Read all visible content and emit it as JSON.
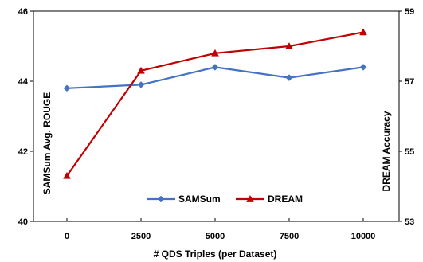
{
  "chart_data": {
    "type": "line",
    "xlabel": "# QDS Triples (per Dataset)",
    "x": [
      0,
      2500,
      5000,
      7500,
      10000
    ],
    "x_tick_labels": [
      "0",
      "2500",
      "5000",
      "7500",
      "10000"
    ],
    "y_left": {
      "label": "SAMSum Avg. ROUGE",
      "lim": [
        40,
        46
      ],
      "ticks": [
        40,
        42,
        44,
        46
      ],
      "tick_labels": [
        "40",
        "42",
        "44",
        "46"
      ]
    },
    "y_right": {
      "label": "DREAM Accuracy",
      "lim": [
        53,
        59
      ],
      "ticks": [
        53,
        55,
        57,
        59
      ],
      "tick_labels": [
        "53",
        "55",
        "57",
        "59"
      ]
    },
    "series": [
      {
        "name": "SAMSum",
        "axis": "left",
        "values": [
          43.8,
          43.9,
          44.4,
          44.1,
          44.4
        ],
        "color": "#4472C4",
        "marker": "diamond"
      },
      {
        "name": "DREAM",
        "axis": "right",
        "values": [
          54.3,
          57.3,
          57.8,
          58.0,
          58.4
        ],
        "color": "#C00000",
        "marker": "triangle"
      }
    ],
    "grid": false,
    "legend": "inside-bottom-center"
  }
}
